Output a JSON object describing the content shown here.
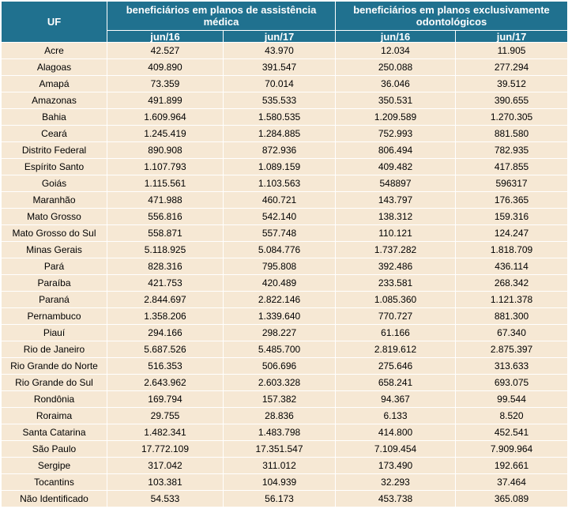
{
  "header": {
    "uf": "UF",
    "group1": "beneficiários em planos de assistência médica",
    "group2": "beneficiários em planos exclusivamente odontológicos",
    "periods": [
      "jun/16",
      "jun/17",
      "jun/16",
      "jun/17"
    ]
  },
  "rows": [
    {
      "uf": "Acre",
      "v": [
        "42.527",
        "43.970",
        "12.034",
        "11.905"
      ]
    },
    {
      "uf": "Alagoas",
      "v": [
        "409.890",
        "391.547",
        "250.088",
        "277.294"
      ]
    },
    {
      "uf": "Amapá",
      "v": [
        "73.359",
        "70.014",
        "36.046",
        "39.512"
      ]
    },
    {
      "uf": "Amazonas",
      "v": [
        "491.899",
        "535.533",
        "350.531",
        "390.655"
      ]
    },
    {
      "uf": "Bahia",
      "v": [
        "1.609.964",
        "1.580.535",
        "1.209.589",
        "1.270.305"
      ]
    },
    {
      "uf": "Ceará",
      "v": [
        "1.245.419",
        "1.284.885",
        "752.993",
        "881.580"
      ]
    },
    {
      "uf": "Distrito Federal",
      "v": [
        "890.908",
        "872.936",
        "806.494",
        "782.935"
      ]
    },
    {
      "uf": "Espírito Santo",
      "v": [
        "1.107.793",
        "1.089.159",
        "409.482",
        "417.855"
      ]
    },
    {
      "uf": "Goiás",
      "v": [
        "1.115.561",
        "1.103.563",
        "548897",
        "596317"
      ]
    },
    {
      "uf": "Maranhão",
      "v": [
        "471.988",
        "460.721",
        "143.797",
        "176.365"
      ]
    },
    {
      "uf": "Mato Grosso",
      "v": [
        "556.816",
        "542.140",
        "138.312",
        "159.316"
      ]
    },
    {
      "uf": "Mato Grosso do Sul",
      "v": [
        "558.871",
        "557.748",
        "110.121",
        "124.247"
      ]
    },
    {
      "uf": "Minas Gerais",
      "v": [
        "5.118.925",
        "5.084.776",
        "1.737.282",
        "1.818.709"
      ]
    },
    {
      "uf": "Pará",
      "v": [
        "828.316",
        "795.808",
        "392.486",
        "436.114"
      ]
    },
    {
      "uf": "Paraíba",
      "v": [
        "421.753",
        "420.489",
        "233.581",
        "268.342"
      ]
    },
    {
      "uf": "Paraná",
      "v": [
        "2.844.697",
        "2.822.146",
        "1.085.360",
        "1.121.378"
      ]
    },
    {
      "uf": "Pernambuco",
      "v": [
        "1.358.206",
        "1.339.640",
        "770.727",
        "881.300"
      ]
    },
    {
      "uf": "Piauí",
      "v": [
        "294.166",
        "298.227",
        "61.166",
        "67.340"
      ]
    },
    {
      "uf": "Rio de Janeiro",
      "v": [
        "5.687.526",
        "5.485.700",
        "2.819.612",
        "2.875.397"
      ]
    },
    {
      "uf": "Rio Grande do Norte",
      "v": [
        "516.353",
        "506.696",
        "275.646",
        "313.633"
      ]
    },
    {
      "uf": "Rio Grande do Sul",
      "v": [
        "2.643.962",
        "2.603.328",
        "658.241",
        "693.075"
      ]
    },
    {
      "uf": "Rondônia",
      "v": [
        "169.794",
        "157.382",
        "94.367",
        "99.544"
      ]
    },
    {
      "uf": "Roraima",
      "v": [
        "29.755",
        "28.836",
        "6.133",
        "8.520"
      ]
    },
    {
      "uf": "Santa Catarina",
      "v": [
        "1.482.341",
        "1.483.798",
        "414.800",
        "452.541"
      ]
    },
    {
      "uf": "São Paulo",
      "v": [
        "17.772.109",
        "17.351.547",
        "7.109.454",
        "7.909.964"
      ]
    },
    {
      "uf": "Sergipe",
      "v": [
        "317.042",
        "311.012",
        "173.490",
        "192.661"
      ]
    },
    {
      "uf": "Tocantins",
      "v": [
        "103.381",
        "104.939",
        "32.293",
        "37.464"
      ]
    },
    {
      "uf": "Não Identificado",
      "v": [
        "54.533",
        "56.173",
        "453.738",
        "365.089"
      ]
    }
  ]
}
